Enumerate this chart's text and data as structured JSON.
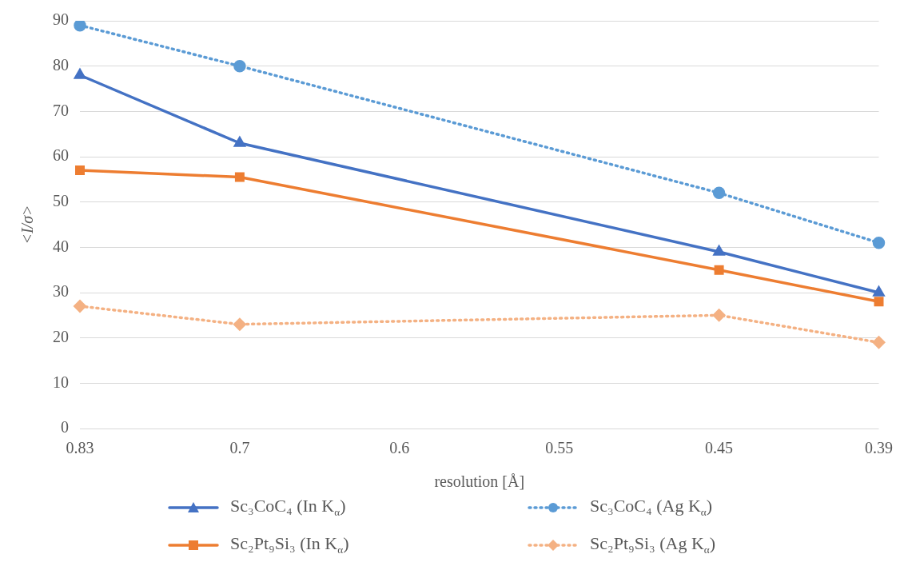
{
  "chart_data": {
    "type": "line",
    "xlabel": "resolution [Å]",
    "ylabel": "<I/σ>",
    "categories": [
      "0.83",
      "0.7",
      "0.6",
      "0.55",
      "0.45",
      "0.39"
    ],
    "series": [
      {
        "name": "Sc₃CoC₄ (In K$_{α}$)",
        "color": "#4472c4",
        "marker": "triangle",
        "line_style": "solid",
        "values": [
          78,
          63,
          null,
          null,
          39,
          30
        ]
      },
      {
        "name": "Sc₃CoC₄ (Ag K$_{α}$)",
        "color": "#5b9bd5",
        "marker": "circle",
        "line_style": "dotted",
        "values": [
          89,
          80,
          null,
          null,
          52,
          41
        ]
      },
      {
        "name": "Sc₂Pt₉Si₃ (In K$_{α}$)",
        "color": "#ed7d31",
        "marker": "square",
        "line_style": "solid",
        "values": [
          57,
          55.5,
          null,
          null,
          35,
          28
        ]
      },
      {
        "name": "Sc₂Pt₉Si₃ (Ag K$_{α}$)",
        "color": "#f4b183",
        "marker": "diamond",
        "line_style": "dotted",
        "values": [
          27,
          23,
          null,
          null,
          25,
          19
        ]
      }
    ],
    "ylim": [
      0,
      90
    ],
    "yticks": [
      0,
      10,
      20,
      30,
      40,
      50,
      60,
      70,
      80,
      90
    ],
    "grid": "y",
    "legend": "bottom"
  }
}
